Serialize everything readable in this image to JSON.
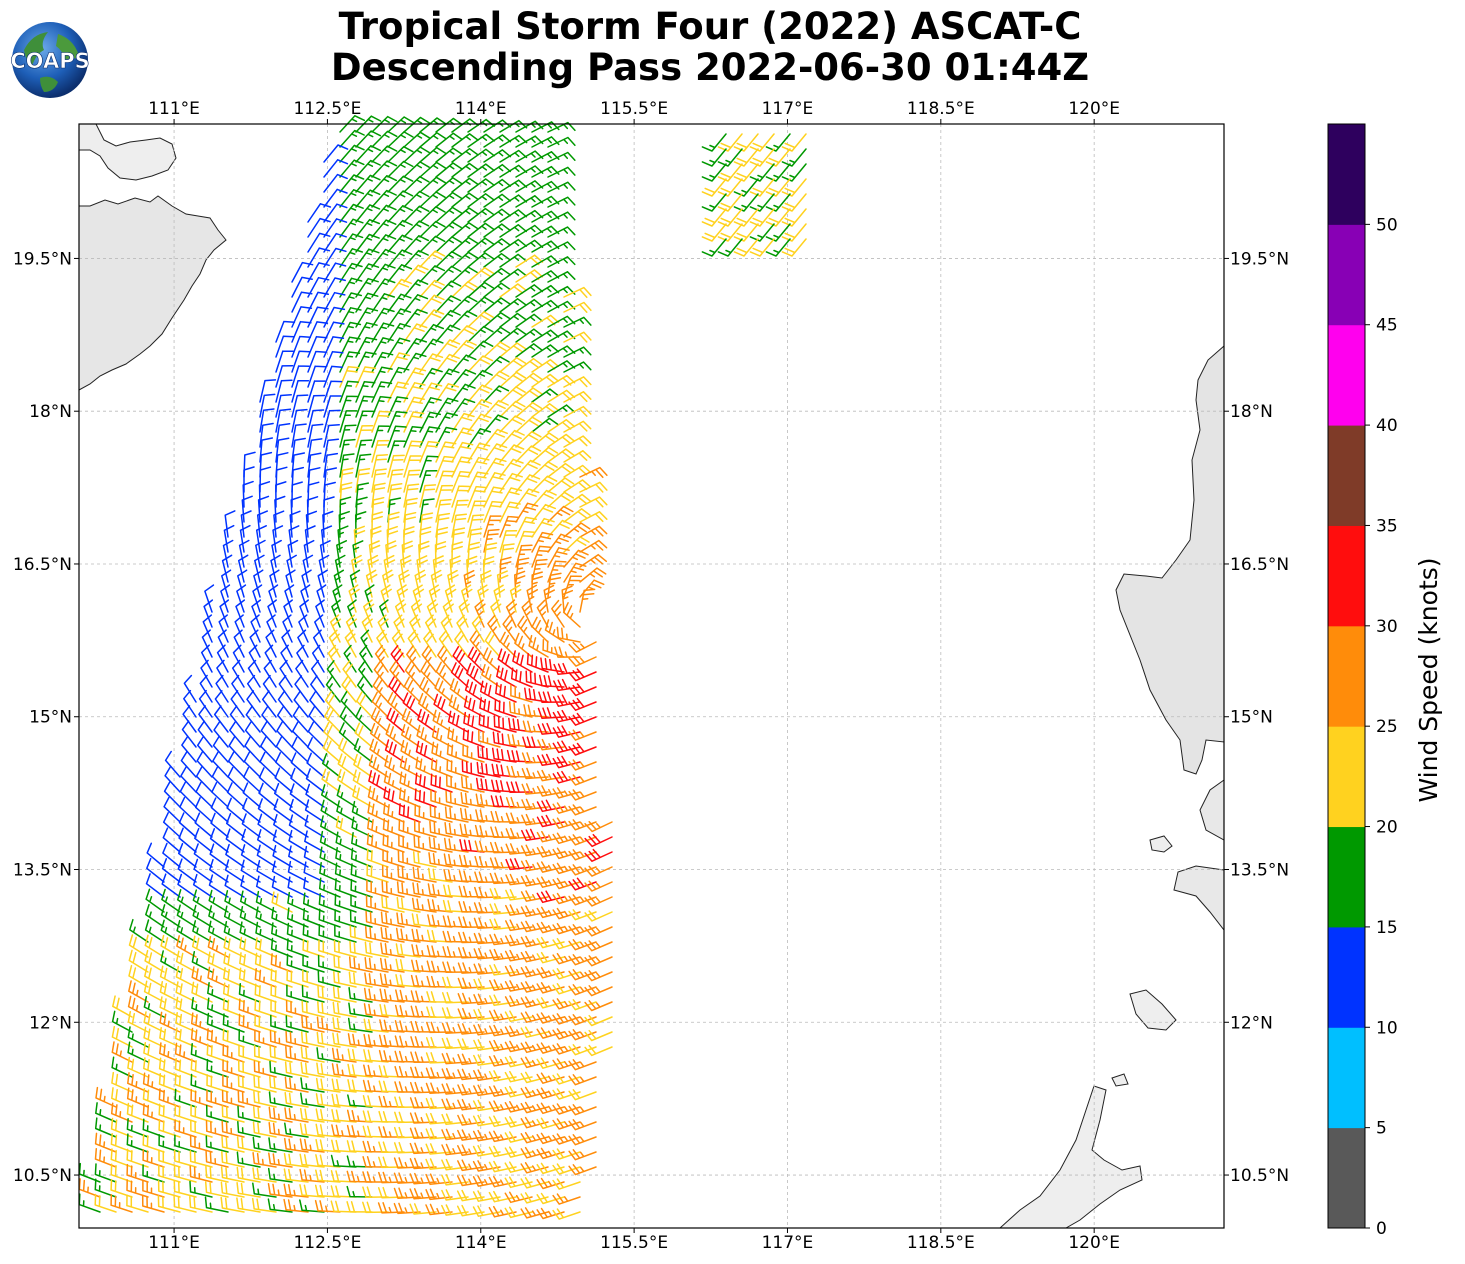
{
  "title_line1": "Tropical Storm Four (2022) ASCAT-C",
  "title_line2": "Descending Pass 2022-06-30 01:44Z",
  "logo_text": "COAPS",
  "map": {
    "lon_range": [
      110.07,
      121.27
    ],
    "lat_range": [
      9.98,
      20.82
    ],
    "lon_ticks": [
      "111°E",
      "112.5°E",
      "114°E",
      "115.5°E",
      "117°E",
      "118.5°E",
      "120°E"
    ],
    "lat_ticks": [
      "10.5°N",
      "12°N",
      "13.5°N",
      "15°N",
      "16.5°N",
      "18°N",
      "19.5°N"
    ],
    "grid": true,
    "storm_center": {
      "lon": 115.1,
      "lat": 15.95
    }
  },
  "colorbar": {
    "label": "Wind Speed (knots)",
    "ticks": [
      "0",
      "5",
      "10",
      "15",
      "20",
      "25",
      "30",
      "35",
      "40",
      "45",
      "50"
    ],
    "colors": [
      "#595959",
      "#00bfff",
      "#0033ff",
      "#009900",
      "#ffd21f",
      "#ff8c0a",
      "#ff0d0d",
      "#7f3b28",
      "#ff00ee",
      "#8800b5",
      "#2e005e"
    ]
  }
}
